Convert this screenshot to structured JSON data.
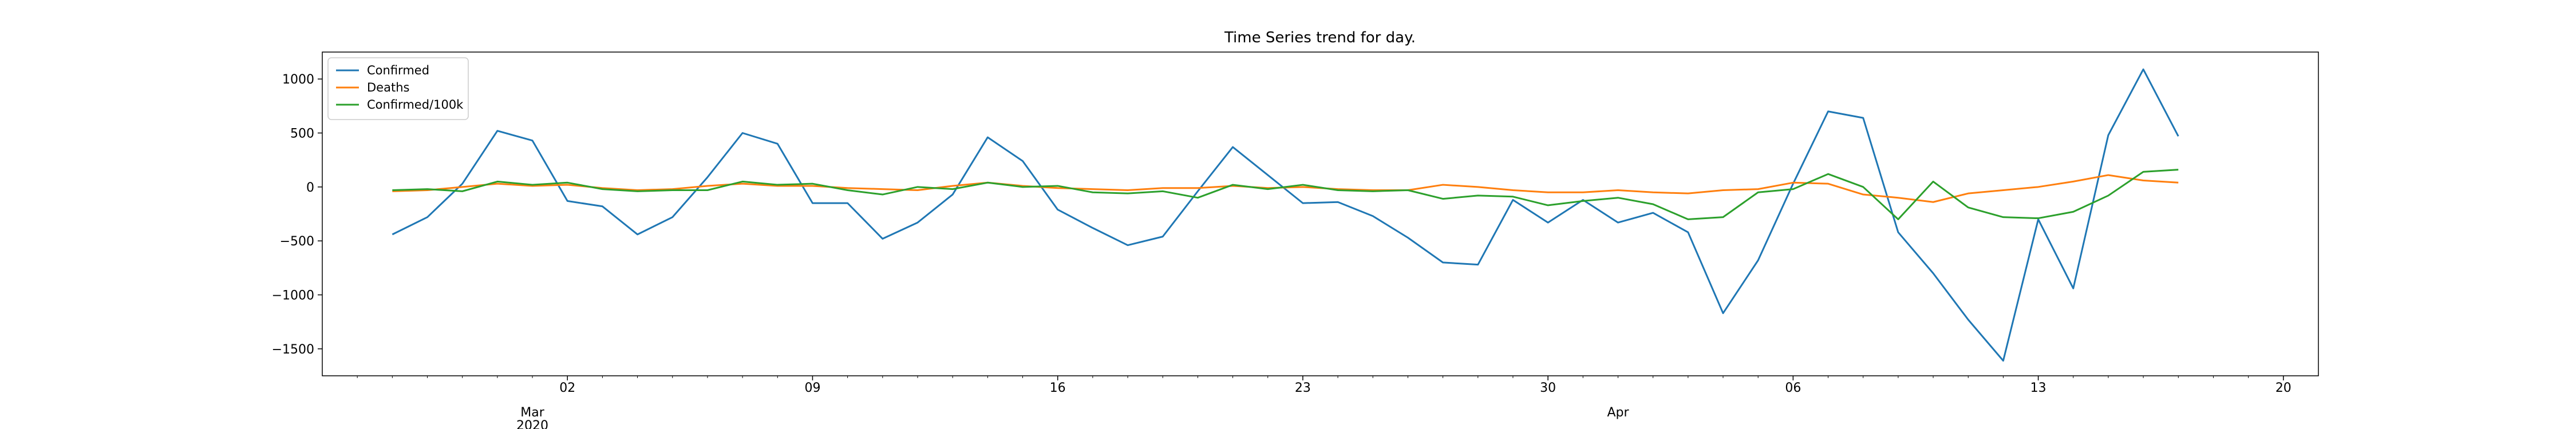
{
  "chart_data": {
    "type": "line",
    "title": "Time Series trend for day.",
    "xlabel": "",
    "ylabel": "",
    "x_start": "2020-02-26",
    "x_end": "2020-04-19",
    "xlim": [
      "2020-02-24",
      "2020-04-21"
    ],
    "ylim": [
      -1750,
      1250
    ],
    "grid": false,
    "legend_position": "top-left",
    "x_ticks": [
      {
        "date": "2020-03-02",
        "label": "02",
        "secondary": "Mar",
        "tertiary": "2020"
      },
      {
        "date": "2020-03-09",
        "label": "09"
      },
      {
        "date": "2020-03-16",
        "label": "16"
      },
      {
        "date": "2020-03-23",
        "label": "23"
      },
      {
        "date": "2020-03-30",
        "label": "30"
      },
      {
        "date": "2020-04-06",
        "label": "06",
        "secondary": "Apr"
      },
      {
        "date": "2020-04-13",
        "label": "13"
      },
      {
        "date": "2020-04-20",
        "label": "20"
      }
    ],
    "y_ticks": [
      {
        "value": 1000,
        "label": "1000"
      },
      {
        "value": 500,
        "label": "500"
      },
      {
        "value": 0,
        "label": "0"
      },
      {
        "value": -500,
        "label": "−500"
      },
      {
        "value": -1000,
        "label": "−1000"
      },
      {
        "value": -1500,
        "label": "−1500"
      }
    ],
    "series": [
      {
        "name": "Confirmed",
        "color": "#1f77b4",
        "values": [
          -440,
          -280,
          30,
          520,
          430,
          -130,
          -180,
          -440,
          -280,
          90,
          500,
          400,
          -150,
          -150,
          -480,
          -330,
          -70,
          460,
          240,
          -210,
          -380,
          -540,
          -460,
          -40,
          370,
          110,
          -150,
          -140,
          -270,
          -470,
          -700,
          -720,
          -120,
          -330,
          -120,
          -330,
          -240,
          -420,
          -1170,
          -680,
          30,
          700,
          640,
          -420,
          -800,
          -1230,
          -1610,
          -300,
          -940,
          480,
          1090,
          470
        ]
      },
      {
        "name": "Deaths",
        "color": "#ff7f0e",
        "values": [
          -40,
          -30,
          0,
          30,
          10,
          20,
          -10,
          -30,
          -20,
          10,
          30,
          10,
          10,
          -10,
          -20,
          -30,
          10,
          40,
          10,
          -10,
          -20,
          -30,
          -10,
          -10,
          10,
          -10,
          0,
          -20,
          -30,
          -30,
          20,
          0,
          -30,
          -50,
          -50,
          -30,
          -50,
          -60,
          -30,
          -20,
          40,
          30,
          -70,
          -100,
          -140,
          -60,
          -30,
          0,
          50,
          110,
          60,
          40
        ]
      },
      {
        "name": "Confirmed/100k",
        "color": "#2ca02c",
        "values": [
          -30,
          -20,
          -40,
          50,
          20,
          40,
          -20,
          -40,
          -30,
          -30,
          50,
          20,
          30,
          -30,
          -70,
          0,
          -20,
          40,
          0,
          10,
          -50,
          -60,
          -40,
          -100,
          20,
          -20,
          20,
          -30,
          -40,
          -30,
          -110,
          -80,
          -90,
          -170,
          -130,
          -100,
          -160,
          -300,
          -280,
          -50,
          -20,
          120,
          0,
          -300,
          50,
          -190,
          -280,
          -290,
          -230,
          -80,
          140,
          160
        ]
      }
    ]
  }
}
